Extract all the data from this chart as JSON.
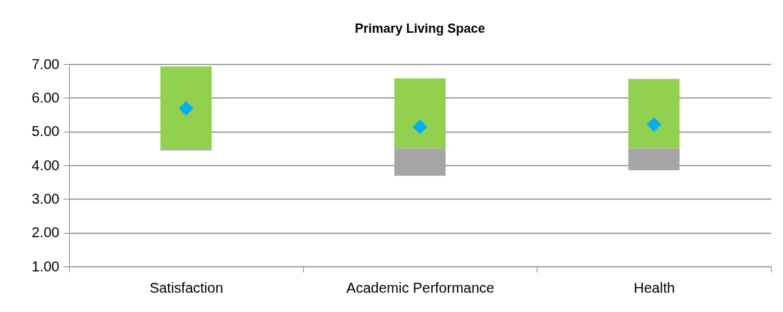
{
  "chart_data": {
    "type": "bar",
    "title": "Primary Living Space",
    "categories": [
      "Satisfaction",
      "Academic Performance",
      "Health"
    ],
    "series": [
      {
        "color": "#a6a6a6",
        "base": [
          4.44,
          3.69,
          3.85
        ],
        "values": [
          0.04,
          0.81,
          0.65
        ]
      },
      {
        "color": "#92d050",
        "base": [
          4.48,
          4.5,
          4.5
        ],
        "values": [
          2.45,
          2.08,
          2.06
        ]
      },
      {
        "type": "scatter",
        "color": "#00b0f0",
        "marker": "diamond",
        "x": [
          "Satisfaction",
          "Academic Performance",
          "Health"
        ],
        "values": [
          5.69,
          5.14,
          5.21
        ]
      }
    ],
    "ylim": [
      1,
      7
    ],
    "yticks": [
      {
        "value": 1,
        "label": "1.00"
      },
      {
        "value": 2,
        "label": "2.00"
      },
      {
        "value": 3,
        "label": "3.00"
      },
      {
        "value": 4,
        "label": "4.00"
      },
      {
        "value": 5,
        "label": "5.00"
      },
      {
        "value": 6,
        "label": "6.00"
      },
      {
        "value": 7,
        "label": "7.00"
      }
    ],
    "grid": "y"
  }
}
